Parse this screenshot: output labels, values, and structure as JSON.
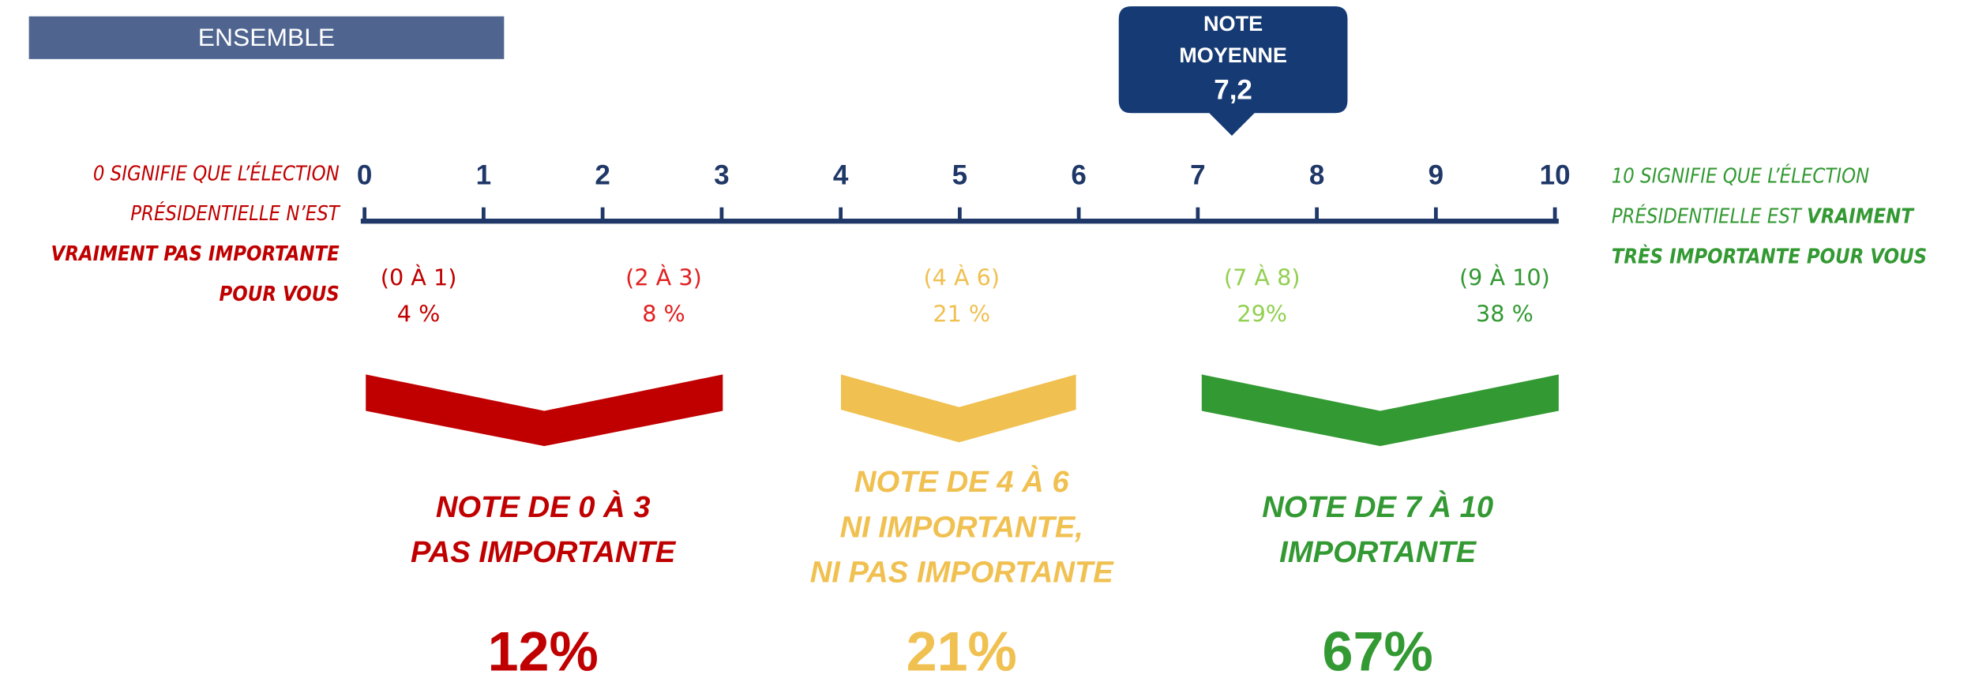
{
  "header": {
    "label": "ENSEMBLE"
  },
  "average": {
    "lines": [
      "NOTE",
      "MOYENNE"
    ],
    "value": "7,2"
  },
  "scale": {
    "ticks": [
      "0",
      "1",
      "2",
      "3",
      "4",
      "5",
      "6",
      "7",
      "8",
      "9",
      "10"
    ]
  },
  "left_caption": {
    "lines": [
      "0 SIGNIFIE QUE L’ÉLECTION",
      "PRÉSIDENTIELLE N’EST",
      "VRAIMENT PAS IMPORTANTE",
      "POUR VOUS"
    ]
  },
  "right_caption": {
    "lines": [
      "10 SIGNIFIE QUE L’ÉLECTION",
      "PRÉSIDENTIELLE EST ",
      "VRAIMENT",
      "TRÈS IMPORTANTE POUR VOUS"
    ]
  },
  "ranges": [
    {
      "label": "(0 À 1)",
      "share": "4 %"
    },
    {
      "label": "(2 À 3)",
      "share": "8 %"
    },
    {
      "label": "(4 À 6)",
      "share": "21 %"
    },
    {
      "label": "(7 À 8)",
      "share": "29%"
    },
    {
      "label": "(9 À 10)",
      "share": "38 %"
    }
  ],
  "groups": [
    {
      "lines": [
        "NOTE DE 0 À 3",
        "PAS IMPORTANTE"
      ],
      "total": "12%"
    },
    {
      "lines": [
        "NOTE DE 4 À 6",
        "NI IMPORTANTE,",
        "NI PAS IMPORTANTE"
      ],
      "total": "21%"
    },
    {
      "lines": [
        "NOTE DE 7 À 10",
        "IMPORTANTE"
      ],
      "total": "67%"
    }
  ]
}
